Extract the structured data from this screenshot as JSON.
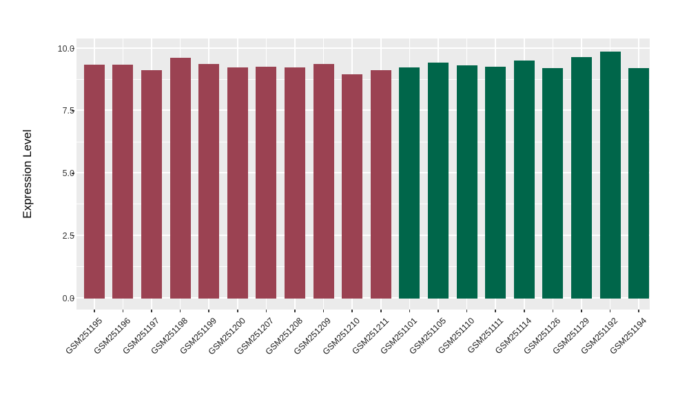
{
  "chart_data": {
    "type": "bar",
    "title": "",
    "xlabel": "",
    "ylabel": "Expression Level",
    "ylim": [
      0,
      10.4
    ],
    "grid": true,
    "legend": false,
    "yticks": [
      0.0,
      2.5,
      5.0,
      7.5,
      10.0
    ],
    "ytick_labels": [
      "0.0",
      "2.5",
      "5.0",
      "7.5",
      "10.0"
    ],
    "minor_yticks": [
      1.25,
      3.75,
      6.25,
      8.75
    ],
    "categories": [
      "GSM251195",
      "GSM251196",
      "GSM251197",
      "GSM251198",
      "GSM251199",
      "GSM251200",
      "GSM251207",
      "GSM251208",
      "GSM251209",
      "GSM251210",
      "GSM251211",
      "GSM251101",
      "GSM251105",
      "GSM251110",
      "GSM251111",
      "GSM251114",
      "GSM251126",
      "GSM251129",
      "GSM251192",
      "GSM251194"
    ],
    "values": [
      9.35,
      9.35,
      9.14,
      9.64,
      9.38,
      9.24,
      9.26,
      9.23,
      9.39,
      8.98,
      9.12,
      9.24,
      9.44,
      9.32,
      9.28,
      9.52,
      9.21,
      9.65,
      9.87,
      9.22
    ],
    "bar_colors": [
      "#9B4252",
      "#9B4252",
      "#9B4252",
      "#9B4252",
      "#9B4252",
      "#9B4252",
      "#9B4252",
      "#9B4252",
      "#9B4252",
      "#9B4252",
      "#9B4252",
      "#00664A",
      "#00664A",
      "#00664A",
      "#00664A",
      "#00664A",
      "#00664A",
      "#00664A",
      "#00664A",
      "#00664A"
    ],
    "colors": {
      "group_left": "#9B4252",
      "group_right": "#00664A",
      "panel_background": "#EBEBEB",
      "gridline": "#FFFFFF",
      "axis_text": "#333333"
    }
  }
}
